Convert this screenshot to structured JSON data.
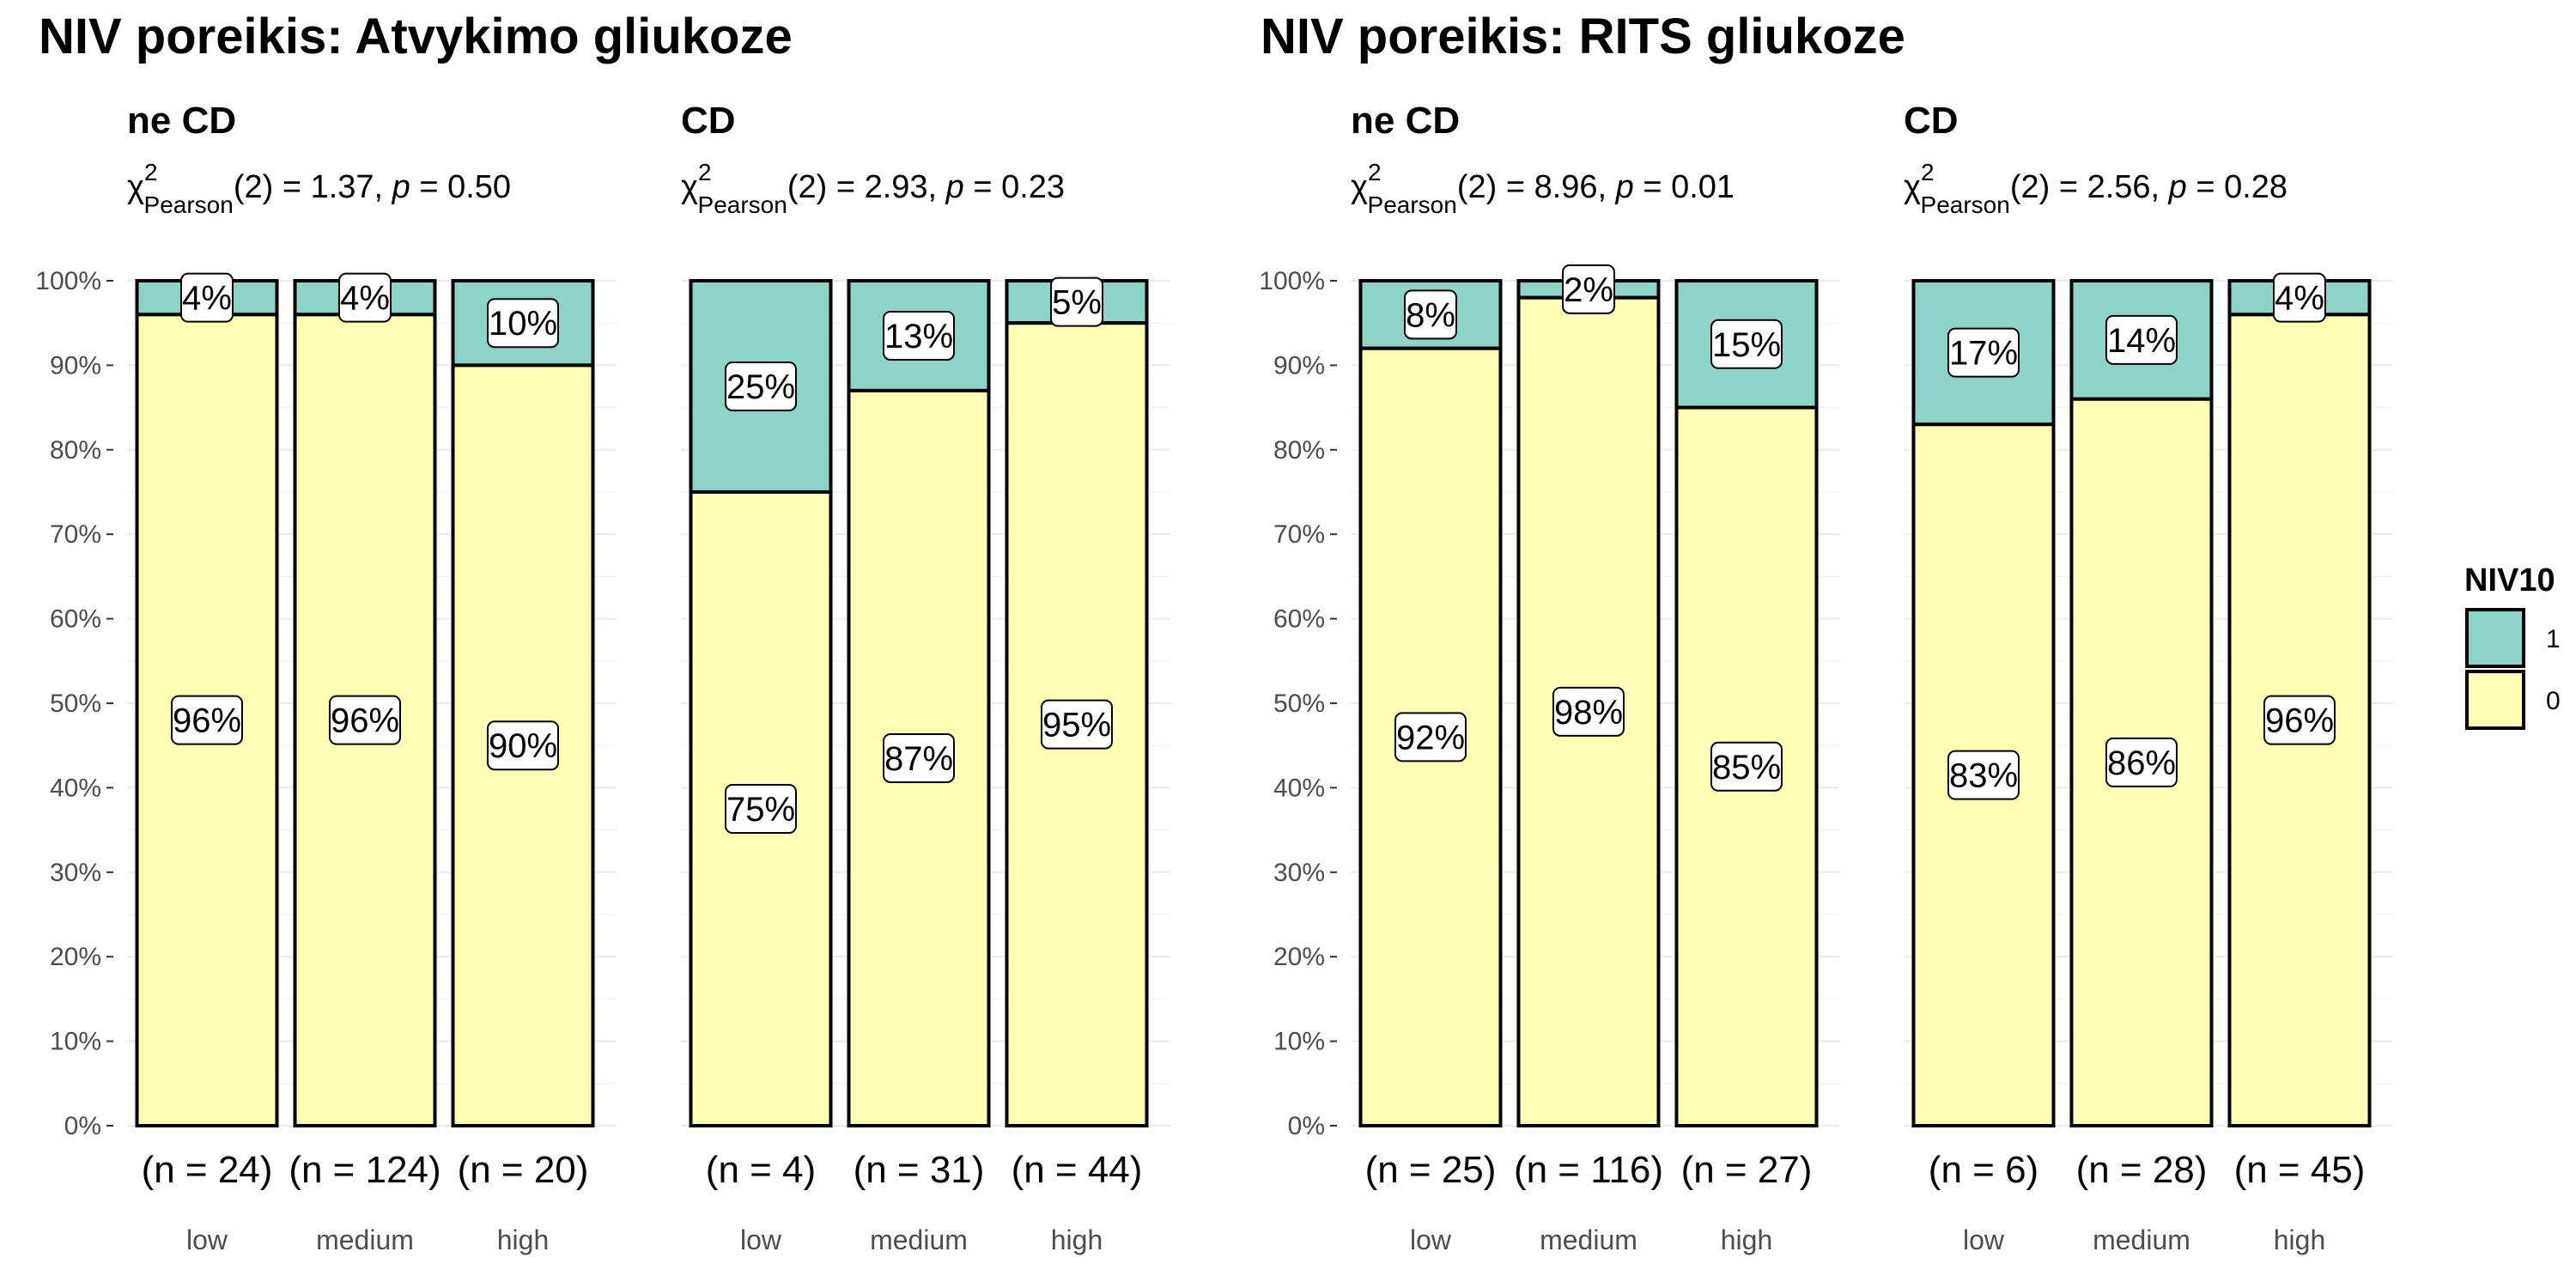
{
  "chart_data": [
    {
      "type": "bar",
      "stacked": true,
      "title": "NIV poreikis: Atvykimo gliukoze",
      "panels": [
        {
          "title": "ne CD",
          "stat": {
            "symbol": "χ",
            "superscript": "2",
            "subscript": "Pearson",
            "df": "(2)",
            "value": "1.37",
            "p": "0.50"
          },
          "categories": [
            "low",
            "medium",
            "high"
          ],
          "n_labels": [
            "(n = 24)",
            "(n = 124)",
            "(n = 20)"
          ],
          "series": [
            {
              "name": "0",
              "values": [
                0.96,
                0.96,
                0.9
              ],
              "labels": [
                "96%",
                "96%",
                "90%"
              ]
            },
            {
              "name": "1",
              "values": [
                0.04,
                0.04,
                0.1
              ],
              "labels": [
                "4%",
                "4%",
                "10%"
              ]
            }
          ]
        },
        {
          "title": "CD",
          "stat": {
            "symbol": "χ",
            "superscript": "2",
            "subscript": "Pearson",
            "df": "(2)",
            "value": "2.93",
            "p": "0.23"
          },
          "categories": [
            "low",
            "medium",
            "high"
          ],
          "n_labels": [
            "(n = 4)",
            "(n = 31)",
            "(n = 44)"
          ],
          "series": [
            {
              "name": "0",
              "values": [
                0.75,
                0.87,
                0.95
              ],
              "labels": [
                "75%",
                "87%",
                "95%"
              ]
            },
            {
              "name": "1",
              "values": [
                0.25,
                0.13,
                0.05
              ],
              "labels": [
                "25%",
                "13%",
                "5%"
              ]
            }
          ]
        }
      ]
    },
    {
      "type": "bar",
      "stacked": true,
      "title": "NIV poreikis: RITS gliukoze",
      "panels": [
        {
          "title": "ne CD",
          "stat": {
            "symbol": "χ",
            "superscript": "2",
            "subscript": "Pearson",
            "df": "(2)",
            "value": "8.96",
            "p": "0.01"
          },
          "categories": [
            "low",
            "medium",
            "high"
          ],
          "n_labels": [
            "(n = 25)",
            "(n = 116)",
            "(n = 27)"
          ],
          "series": [
            {
              "name": "0",
              "values": [
                0.92,
                0.98,
                0.85
              ],
              "labels": [
                "92%",
                "98%",
                "85%"
              ]
            },
            {
              "name": "1",
              "values": [
                0.08,
                0.02,
                0.15
              ],
              "labels": [
                "8%",
                "2%",
                "15%"
              ]
            }
          ]
        },
        {
          "title": "CD",
          "stat": {
            "symbol": "χ",
            "superscript": "2",
            "subscript": "Pearson",
            "df": "(2)",
            "value": "2.56",
            "p": "0.28"
          },
          "categories": [
            "low",
            "medium",
            "high"
          ],
          "n_labels": [
            "(n = 6)",
            "(n = 28)",
            "(n = 45)"
          ],
          "series": [
            {
              "name": "0",
              "values": [
                0.83,
                0.86,
                0.96
              ],
              "labels": [
                "83%",
                "86%",
                "96%"
              ]
            },
            {
              "name": "1",
              "values": [
                0.17,
                0.14,
                0.04
              ],
              "labels": [
                "17%",
                "14%",
                "4%"
              ]
            }
          ]
        }
      ]
    }
  ],
  "y_axis": {
    "range": [
      0,
      1
    ],
    "ticks": [
      "0%",
      "10%",
      "20%",
      "30%",
      "40%",
      "50%",
      "60%",
      "70%",
      "80%",
      "90%",
      "100%"
    ],
    "grid": true
  },
  "legend": {
    "title": "NIV10",
    "position": "right",
    "items": [
      {
        "label": "1",
        "color": "#8DD3C7"
      },
      {
        "label": "0",
        "color": "#FFFFB3"
      }
    ]
  },
  "colors": {
    "level_0": "#FFFFB3",
    "level_1": "#8DD3C7",
    "grid": "#ebebeb",
    "outline": "#000000"
  }
}
